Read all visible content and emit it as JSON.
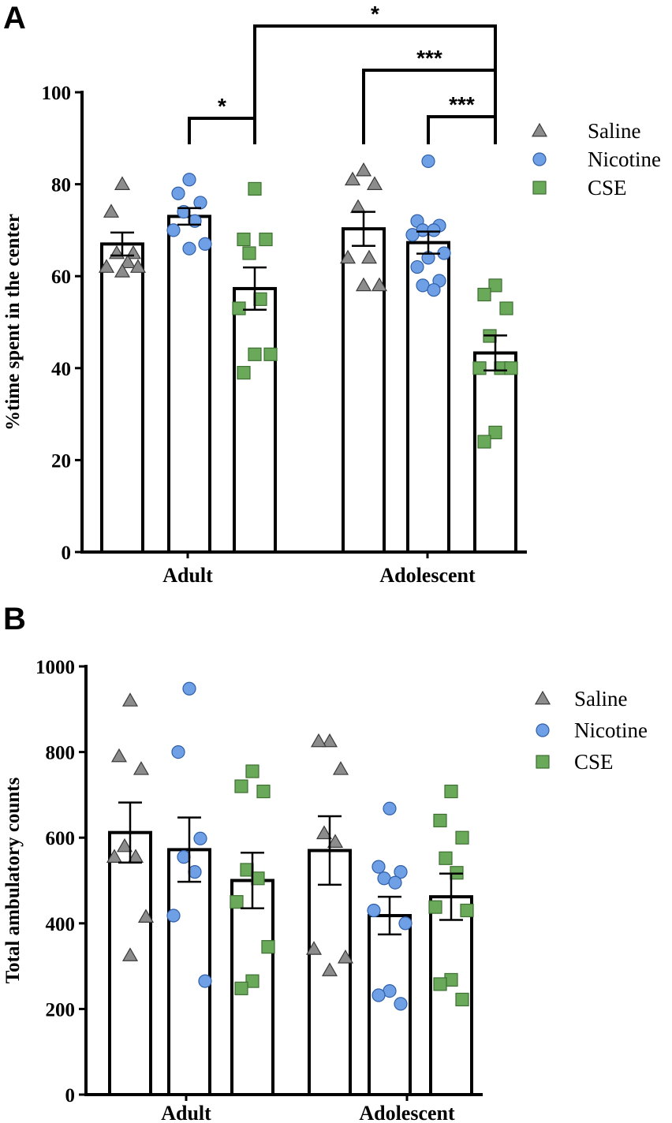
{
  "chart_data": [
    {
      "panel": "A",
      "type": "bar",
      "ylabel": "%time spent in the center",
      "ylim": [
        0,
        100
      ],
      "yticks": [
        0,
        20,
        40,
        60,
        80,
        100
      ],
      "categories": [
        "Adult",
        "Adolescent"
      ],
      "series": [
        {
          "name": "Saline",
          "color": "#8c8c8c",
          "marker": "triangle",
          "values": [
            67,
            70.3
          ],
          "sem": [
            2.5,
            3.7
          ],
          "points": [
            [
              80,
              74,
              65,
              65,
              63,
              62,
              62,
              61
            ],
            [
              83,
              81,
              80,
              75,
              64,
              64,
              58,
              58
            ]
          ]
        },
        {
          "name": "Nicotine",
          "color": "#6fa0e6",
          "marker": "circle",
          "values": [
            73,
            67.3
          ],
          "sem": [
            1.8,
            2.4
          ],
          "points": [
            [
              81,
              78,
              76,
              74,
              72,
              70,
              67,
              66
            ],
            [
              85,
              72,
              71,
              70,
              70,
              69,
              65,
              64,
              62,
              59,
              58,
              57
            ]
          ]
        },
        {
          "name": "CSE",
          "color": "#6aa85a",
          "marker": "square",
          "values": [
            57.3,
            43.3
          ],
          "sem": [
            4.6,
            3.8
          ],
          "points": [
            [
              79,
              68,
              68,
              65,
              55,
              53,
              43,
              43,
              39
            ],
            [
              58,
              56,
              53,
              47,
              40,
              40,
              40,
              26,
              24
            ]
          ]
        }
      ],
      "significance": [
        {
          "label": "*",
          "from": "Adult-Nicotine",
          "to": "Adult-CSE"
        },
        {
          "label": "*",
          "from": "Adult-CSE",
          "to": "Adolescent-CSE"
        },
        {
          "label": "***",
          "from": "Adolescent-Saline",
          "to": "Adolescent-CSE"
        },
        {
          "label": "***",
          "from": "Adolescent-Nicotine",
          "to": "Adolescent-CSE"
        }
      ],
      "legend": [
        "Saline",
        "Nicotine",
        "CSE"
      ],
      "legend_position": "top-right"
    },
    {
      "panel": "B",
      "type": "bar",
      "ylabel": "Total ambulatory counts",
      "ylim": [
        0,
        1000
      ],
      "yticks": [
        0,
        200,
        400,
        600,
        800,
        1000
      ],
      "categories": [
        "Adult",
        "Adolescent"
      ],
      "series": [
        {
          "name": "Saline",
          "color": "#8c8c8c",
          "marker": "triangle",
          "values": [
            612,
            570
          ],
          "sem": [
            70,
            80
          ],
          "points": [
            [
              920,
              790,
              760,
              580,
              555,
              555,
              415,
              325
            ],
            [
              825,
              825,
              760,
              610,
              590,
              340,
              320,
              290
            ]
          ]
        },
        {
          "name": "Nicotine",
          "color": "#6fa0e6",
          "marker": "circle",
          "values": [
            572,
            418
          ],
          "sem": [
            75,
            44
          ],
          "points": [
            [
              948,
              800,
              598,
              555,
              520,
              418,
              265
            ],
            [
              668,
              532,
              520,
              505,
              495,
              430,
              400,
              242,
              232,
              212
            ]
          ]
        },
        {
          "name": "CSE",
          "color": "#6aa85a",
          "marker": "square",
          "values": [
            500,
            462
          ],
          "sem": [
            65,
            54
          ],
          "points": [
            [
              755,
              720,
              708,
              525,
              505,
              450,
              345,
              265,
              248
            ],
            [
              708,
              640,
              600,
              552,
              518,
              438,
              430,
              268,
              258,
              222
            ]
          ]
        }
      ],
      "legend": [
        "Saline",
        "Nicotine",
        "CSE"
      ],
      "legend_position": "top-right"
    }
  ]
}
